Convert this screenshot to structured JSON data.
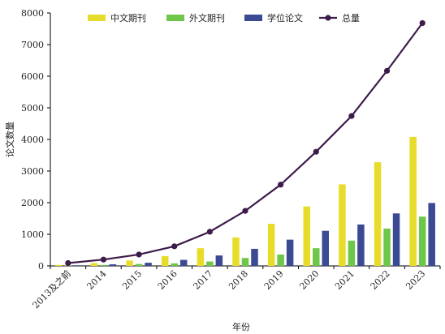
{
  "chart_data": {
    "type": "bar",
    "categories": [
      "2013及之前",
      "2014",
      "2015",
      "2016",
      "2017",
      "2018",
      "2019",
      "2020",
      "2021",
      "2022",
      "2023"
    ],
    "series": [
      {
        "name": "中文期刊",
        "type": "bar",
        "color": "#e8dc2a",
        "values": [
          30,
          90,
          170,
          310,
          560,
          900,
          1330,
          1880,
          2580,
          3280,
          4080
        ]
      },
      {
        "name": "外文期刊",
        "type": "bar",
        "color": "#6fc74a",
        "values": [
          10,
          30,
          60,
          80,
          140,
          250,
          360,
          560,
          800,
          1180,
          1560
        ]
      },
      {
        "name": "学位论文",
        "type": "bar",
        "color": "#3b4a93",
        "values": [
          20,
          50,
          100,
          190,
          330,
          540,
          830,
          1110,
          1310,
          1660,
          1990
        ]
      },
      {
        "name": "总量",
        "type": "line",
        "color": "#3d1b4b",
        "values": [
          90,
          200,
          360,
          620,
          1080,
          1740,
          2570,
          3610,
          4740,
          6170,
          7680
        ]
      }
    ],
    "xlabel": "年份",
    "ylabel": "论文数量",
    "ylim": [
      0,
      8000
    ],
    "yticks": [
      0,
      1000,
      2000,
      3000,
      4000,
      5000,
      6000,
      7000,
      8000
    ],
    "legend_position": "top",
    "grid": false
  }
}
